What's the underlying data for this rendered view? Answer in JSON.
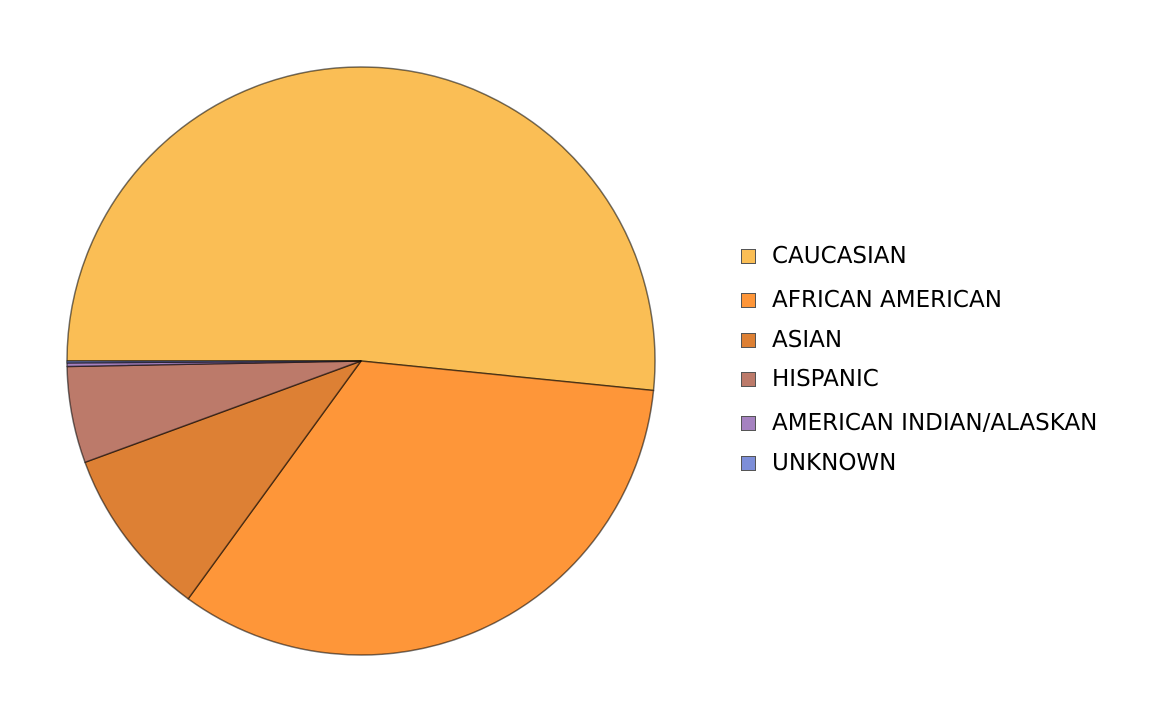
{
  "chart_data": {
    "type": "pie",
    "start_angle_deg": 180,
    "direction": "clockwise",
    "legend_placement": "right",
    "slices": [
      {
        "label": "CAUCASIAN",
        "value": 51.6,
        "color": "#FABE55"
      },
      {
        "label": "AFRICAN AMERICAN",
        "value": 33.4,
        "color": "#FE9639"
      },
      {
        "label": "ASIAN",
        "value": 9.4,
        "color": "#DD8034"
      },
      {
        "label": "HISPANIC",
        "value": 5.3,
        "color": "#BC7A6A"
      },
      {
        "label": "AMERICAN INDIAN/ALASKAN",
        "value": 0.2,
        "color": "#A582C0"
      },
      {
        "label": "UNKNOWN",
        "value": 0.1,
        "color": "#7D8ED8"
      }
    ]
  }
}
